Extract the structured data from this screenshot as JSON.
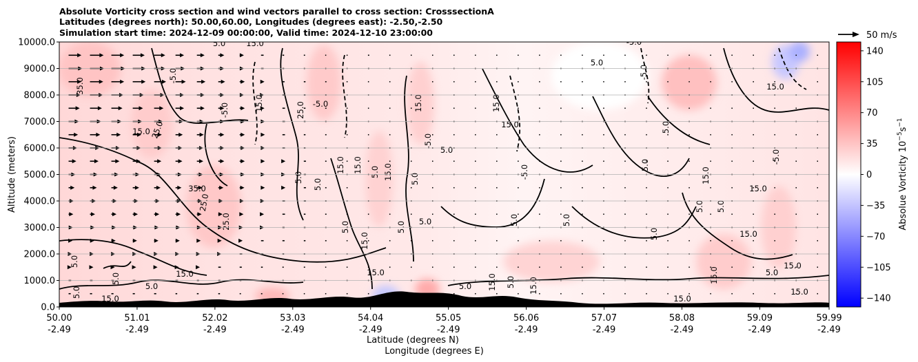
{
  "chart_data": {
    "type": "heatmap",
    "title_lines": [
      "Absolute Vorticity cross section and wind vectors parallel to cross section: CrosssectionA",
      "Latitudes (degrees north): 50.00,60.00, Longitudes (degrees east): -2.50,-2.50",
      "Simulation start time: 2024-12-09 00:00:00, Valid time: 2024-12-10 23:00:00"
    ],
    "xlabel_lines": [
      "Latitude (degrees N)",
      "Longitude (degrees E)"
    ],
    "ylabel": "Altitude (meters)",
    "x_ticks": [
      {
        "lat": 50.0,
        "label1": "50.00",
        "label2": "-2.49"
      },
      {
        "lat": 51.01,
        "label1": "51.01",
        "label2": "-2.49"
      },
      {
        "lat": 52.02,
        "label1": "52.02",
        "label2": "-2.49"
      },
      {
        "lat": 53.03,
        "label1": "53.03",
        "label2": "-2.49"
      },
      {
        "lat": 54.04,
        "label1": "54.04",
        "label2": "-2.49"
      },
      {
        "lat": 55.05,
        "label1": "55.05",
        "label2": "-2.49"
      },
      {
        "lat": 56.06,
        "label1": "56.06",
        "label2": "-2.49"
      },
      {
        "lat": 57.07,
        "label1": "57.07",
        "label2": "-2.49"
      },
      {
        "lat": 58.08,
        "label1": "58.08",
        "label2": "-2.49"
      },
      {
        "lat": 59.09,
        "label1": "59.09",
        "label2": "-2.49"
      },
      {
        "lat": 59.99,
        "label1": "59.99",
        "label2": "-2.49"
      }
    ],
    "xlim": [
      50.0,
      59.99
    ],
    "y_ticks": [
      {
        "value": 0,
        "label": "0.0"
      },
      {
        "value": 1000,
        "label": "1000.0"
      },
      {
        "value": 2000,
        "label": "2000.0"
      },
      {
        "value": 3000,
        "label": "3000.0"
      },
      {
        "value": 4000,
        "label": "4000.0"
      },
      {
        "value": 5000,
        "label": "5000.0"
      },
      {
        "value": 6000,
        "label": "6000.0"
      },
      {
        "value": 7000,
        "label": "7000.0"
      },
      {
        "value": 8000,
        "label": "8000.0"
      },
      {
        "value": 9000,
        "label": "9000.0"
      },
      {
        "value": 10000,
        "label": "10000.0"
      }
    ],
    "ylim": [
      0,
      10000
    ],
    "grid": "horizontal",
    "colorbar": {
      "label": "Absolue Vorticity 10",
      "label_unit_exp1": "−5",
      "label_unit_mid": "s",
      "label_unit_exp2": "−1",
      "range": [
        -150,
        150
      ],
      "ticks": [
        {
          "value": 140,
          "label": "140"
        },
        {
          "value": 105,
          "label": "105"
        },
        {
          "value": 70,
          "label": "70"
        },
        {
          "value": 35,
          "label": "35"
        },
        {
          "value": 0,
          "label": "0"
        },
        {
          "value": -35,
          "label": "−35"
        },
        {
          "value": -70,
          "label": "−70"
        },
        {
          "value": -105,
          "label": "−105"
        },
        {
          "value": -140,
          "label": "−140"
        }
      ],
      "colors": {
        "low": "#0000ff",
        "mid": "#ffffff",
        "high": "#ff0000"
      }
    },
    "wind_key": {
      "label": "50 m/s",
      "speed": 50
    },
    "contour_labels": [
      "5.0",
      "-5.0",
      "15.0",
      "25.0",
      "35.0"
    ],
    "wind_vectors": [
      {
        "alt": 9500,
        "speeds": [
          30,
          32,
          30,
          28,
          26,
          20,
          18,
          14,
          10,
          6,
          4,
          3,
          2,
          2,
          3,
          2,
          1,
          1,
          1,
          1,
          1,
          1,
          1,
          1,
          1,
          1,
          1,
          1,
          1,
          1,
          1,
          1,
          1,
          1,
          1,
          1
        ]
      },
      {
        "alt": 9000,
        "speeds": [
          32,
          33,
          32,
          30,
          26,
          22,
          18,
          14,
          10,
          6,
          4,
          3,
          2,
          2,
          3,
          2,
          1,
          1,
          1,
          1,
          1,
          1,
          1,
          1,
          1,
          1,
          1,
          1,
          1,
          1,
          1,
          1,
          1,
          1,
          1,
          1
        ]
      },
      {
        "alt": 8500,
        "speeds": [
          30,
          31,
          30,
          30,
          28,
          24,
          20,
          16,
          12,
          8,
          5,
          4,
          3,
          2,
          2,
          2,
          1,
          1,
          1,
          1,
          1,
          1,
          1,
          1,
          1,
          1,
          1,
          1,
          1,
          1,
          1,
          1,
          1,
          1,
          1,
          1
        ]
      },
      {
        "alt": 8000,
        "speeds": [
          28,
          30,
          28,
          26,
          24,
          20,
          18,
          14,
          10,
          7,
          5,
          4,
          3,
          2,
          2,
          2,
          1,
          1,
          1,
          1,
          1,
          1,
          1,
          1,
          1,
          1,
          1,
          1,
          1,
          1,
          1,
          1,
          1,
          1,
          1,
          1
        ]
      },
      {
        "alt": 7500,
        "speeds": [
          26,
          28,
          26,
          24,
          22,
          20,
          18,
          14,
          12,
          8,
          6,
          4,
          3,
          2,
          2,
          2,
          1,
          1,
          1,
          1,
          1,
          1,
          1,
          1,
          1,
          1,
          1,
          1,
          1,
          1,
          1,
          1,
          1,
          1,
          1,
          1
        ]
      },
      {
        "alt": 7000,
        "speeds": [
          24,
          26,
          24,
          22,
          20,
          18,
          16,
          14,
          12,
          9,
          6,
          4,
          3,
          2,
          2,
          2,
          1,
          1,
          1,
          1,
          1,
          1,
          1,
          1,
          1,
          1,
          1,
          1,
          1,
          1,
          1,
          1,
          1,
          1,
          1,
          1
        ]
      },
      {
        "alt": 6500,
        "speeds": [
          22,
          24,
          22,
          20,
          18,
          17,
          16,
          14,
          12,
          9,
          6,
          4,
          3,
          2,
          2,
          2,
          1,
          1,
          1,
          1,
          1,
          1,
          1,
          1,
          1,
          1,
          1,
          1,
          1,
          1,
          1,
          1,
          1,
          1,
          1,
          1
        ]
      },
      {
        "alt": 6000,
        "speeds": [
          20,
          22,
          20,
          19,
          18,
          16,
          15,
          14,
          12,
          9,
          6,
          4,
          3,
          2,
          2,
          2,
          1,
          1,
          1,
          1,
          1,
          1,
          1,
          1,
          1,
          1,
          1,
          1,
          1,
          1,
          1,
          1,
          1,
          1,
          1,
          1
        ]
      },
      {
        "alt": 5500,
        "speeds": [
          18,
          20,
          19,
          18,
          17,
          16,
          15,
          14,
          12,
          9,
          7,
          5,
          3,
          2,
          2,
          2,
          1,
          1,
          1,
          1,
          1,
          1,
          1,
          1,
          1,
          1,
          1,
          1,
          1,
          1,
          1,
          1,
          1,
          1,
          1,
          1
        ]
      },
      {
        "alt": 5000,
        "speeds": [
          16,
          18,
          17,
          16,
          16,
          15,
          14,
          13,
          12,
          9,
          7,
          5,
          3,
          2,
          2,
          2,
          1,
          1,
          1,
          1,
          1,
          1,
          1,
          1,
          1,
          1,
          1,
          1,
          1,
          1,
          1,
          1,
          1,
          1,
          1,
          1
        ]
      },
      {
        "alt": 4500,
        "speeds": [
          14,
          16,
          15,
          15,
          15,
          14,
          13,
          12,
          11,
          9,
          7,
          5,
          3,
          2,
          2,
          2,
          1,
          1,
          1,
          1,
          1,
          1,
          1,
          1,
          1,
          1,
          1,
          1,
          1,
          1,
          1,
          1,
          1,
          1,
          1,
          1
        ]
      },
      {
        "alt": 4000,
        "speeds": [
          12,
          14,
          13,
          13,
          13,
          13,
          12,
          11,
          10,
          8,
          6,
          5,
          3,
          2,
          2,
          2,
          1,
          1,
          1,
          1,
          1,
          1,
          1,
          1,
          1,
          1,
          1,
          1,
          1,
          1,
          1,
          1,
          1,
          1,
          1,
          1
        ]
      },
      {
        "alt": 3500,
        "speeds": [
          11,
          12,
          12,
          12,
          12,
          12,
          11,
          10,
          9,
          7,
          6,
          4,
          3,
          2,
          2,
          2,
          1,
          1,
          1,
          1,
          1,
          1,
          1,
          1,
          1,
          1,
          1,
          1,
          1,
          1,
          1,
          1,
          1,
          1,
          1,
          1
        ]
      },
      {
        "alt": 3000,
        "speeds": [
          10,
          11,
          11,
          11,
          11,
          11,
          10,
          9,
          8,
          7,
          5,
          4,
          3,
          2,
          2,
          2,
          1,
          1,
          1,
          1,
          1,
          1,
          1,
          1,
          1,
          1,
          1,
          1,
          1,
          1,
          1,
          1,
          1,
          1,
          1,
          1
        ]
      },
      {
        "alt": 2500,
        "speeds": [
          9,
          10,
          10,
          10,
          10,
          10,
          9,
          8,
          7,
          6,
          5,
          4,
          3,
          2,
          2,
          2,
          1,
          1,
          1,
          1,
          1,
          1,
          1,
          1,
          1,
          1,
          1,
          1,
          1,
          1,
          1,
          1,
          1,
          1,
          1,
          1
        ]
      },
      {
        "alt": 2000,
        "speeds": [
          8,
          9,
          9,
          9,
          9,
          9,
          8,
          7,
          6,
          5,
          4,
          3,
          2,
          2,
          2,
          2,
          1,
          1,
          1,
          1,
          1,
          1,
          1,
          1,
          1,
          1,
          1,
          1,
          1,
          1,
          1,
          1,
          1,
          1,
          1,
          1
        ]
      },
      {
        "alt": 1500,
        "speeds": [
          7,
          8,
          8,
          8,
          8,
          8,
          7,
          6,
          5,
          4,
          3,
          3,
          2,
          2,
          2,
          2,
          1,
          1,
          1,
          1,
          1,
          1,
          1,
          1,
          1,
          1,
          1,
          1,
          1,
          1,
          1,
          1,
          1,
          1,
          1,
          1
        ]
      },
      {
        "alt": 1000,
        "speeds": [
          6,
          6,
          6,
          6,
          6,
          6,
          5,
          5,
          4,
          3,
          3,
          2,
          2,
          2,
          2,
          2,
          1,
          1,
          1,
          1,
          1,
          1,
          1,
          1,
          1,
          1,
          1,
          1,
          1,
          1,
          1,
          1,
          1,
          1,
          1,
          1
        ]
      },
      {
        "alt": 500,
        "speeds": [
          5,
          5,
          5,
          5,
          5,
          4,
          4,
          4,
          3,
          3,
          2,
          2,
          2,
          2,
          2,
          2,
          1,
          1,
          1,
          1,
          1,
          1,
          1,
          1,
          1,
          1,
          1,
          1,
          1,
          1,
          1,
          1,
          1,
          1,
          1,
          1
        ]
      }
    ]
  }
}
